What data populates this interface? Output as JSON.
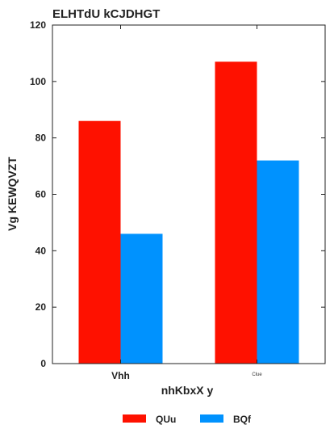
{
  "chart_data": {
    "type": "bar",
    "title": "ELHTdU kCJDHGT",
    "xlabel": "nhKbxX y",
    "ylabel": "Vg KEWQVZT",
    "categories": [
      "Vhh",
      "Clue"
    ],
    "series": [
      {
        "name": "QUu",
        "values": [
          86,
          107
        ],
        "color": "#fe1100"
      },
      {
        "name": "BQf",
        "values": [
          46,
          72
        ],
        "color": "#0092fe"
      }
    ],
    "ylim": [
      0,
      120
    ],
    "yticks": [
      "0",
      "20",
      "40",
      "60",
      "80",
      "100",
      "120"
    ],
    "grid": false,
    "legend_position": "bottom-center"
  }
}
